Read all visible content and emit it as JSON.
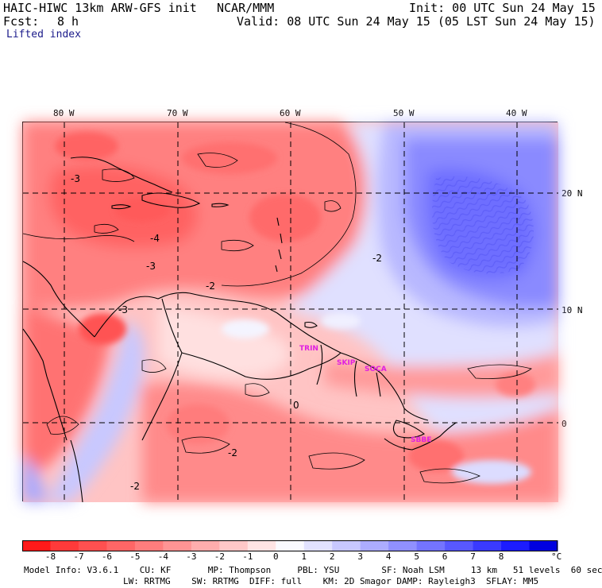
{
  "header": {
    "title": "HAIC-HIWC 13km ARW-GFS init",
    "org": "NCAR/MMM",
    "init": "Init: 00 UTC Sun 24 May 15",
    "fcst_label": "Fcst:",
    "fcst_value": "8 h",
    "valid": "Valid: 08 UTC Sun 24 May 15 (05 LST Sun 24 May 15)",
    "field": "Lifted index"
  },
  "map": {
    "lon_labels": [
      "80 W",
      "70 W",
      "60 W",
      "50 W",
      "40 W"
    ],
    "lat_labels": [
      "20 N",
      "10 N",
      "0"
    ],
    "places": [
      "TRIN",
      "SKIP",
      "SOCA",
      "SBBE"
    ],
    "contour_labels": [
      "-3",
      "-2",
      "-4",
      "-3",
      "-2",
      "-2",
      "-2",
      "-3",
      "0"
    ]
  },
  "colorbar": {
    "levels": [
      "-8",
      "-7",
      "-6",
      "-5",
      "-4",
      "-3",
      "-2",
      "-1",
      "0",
      "1",
      "2",
      "3",
      "4",
      "5",
      "6",
      "7",
      "8"
    ],
    "unit": "°C",
    "colors": [
      "#ff1a1a",
      "#ff3a3a",
      "#ff5050",
      "#ff6666",
      "#ff7d7d",
      "#ff9494",
      "#ffadad",
      "#ffc8c8",
      "#ffe4e4",
      "#fafaff",
      "#e2e2ff",
      "#c8c8ff",
      "#acacff",
      "#9090ff",
      "#7474ff",
      "#5858ff",
      "#3a3aff",
      "#1c1cff",
      "#0000e0"
    ]
  },
  "footer": {
    "line1": "Model Info: V3.6.1    CU: KF       MP: Thompson     PBL: YSU        SF: Noah LSM     13 km   51 levels  60 sec",
    "line2": "LW: RRTMG    SW: RRTMG  DIFF: full    KM: 2D Smagor DAMP: Rayleigh3  SFLAY: MM5"
  }
}
